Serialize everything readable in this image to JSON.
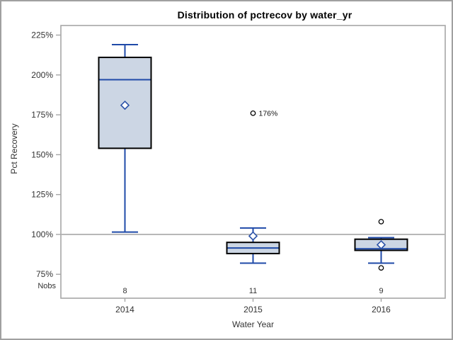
{
  "window": {
    "border_color": "#a0a0a0",
    "background": "#ffffff"
  },
  "chart_data": {
    "type": "boxplot",
    "title": "Distribution of pctrecov by water_yr",
    "xlabel": "Water Year",
    "ylabel": "Pct Recovery",
    "nobs_label": "Nobs",
    "ylim": [
      60,
      231
    ],
    "grid": "off",
    "y_ticks": [
      {
        "value": 75,
        "label": "75%"
      },
      {
        "value": 100,
        "label": "100%"
      },
      {
        "value": 125,
        "label": "125%"
      },
      {
        "value": 150,
        "label": "150%"
      },
      {
        "value": 175,
        "label": "175%"
      },
      {
        "value": 200,
        "label": "200%"
      },
      {
        "value": 225,
        "label": "225%"
      }
    ],
    "reference_line": 100,
    "categories": [
      {
        "label": "2014",
        "nobs": "8",
        "whisker_low": 101.5,
        "q1": 154,
        "median": 197,
        "q3": 211,
        "whisker_high": 219,
        "mean": 181,
        "outliers": []
      },
      {
        "label": "2015",
        "nobs": "11",
        "whisker_low": 82,
        "q1": 88,
        "median": 91.5,
        "q3": 95,
        "whisker_high": 104,
        "mean": 99,
        "outliers": [
          {
            "value": 176,
            "label": "176%"
          }
        ]
      },
      {
        "label": "2016",
        "nobs": "9",
        "whisker_low": 82,
        "q1": 90,
        "median": 91,
        "q3": 97,
        "whisker_high": 98,
        "mean": 93.5,
        "outliers": [
          {
            "value": 108,
            "label": ""
          },
          {
            "value": 79,
            "label": ""
          }
        ]
      }
    ],
    "colors": {
      "box_fill": "#ccd6e4",
      "box_border": "#000000",
      "whisker": "#1f4aa8",
      "median": "#1f4aa8",
      "mean_marker": "#2b52a8",
      "outlier": "#000000",
      "reference_line": "#b3b3b3",
      "frame": "#a6a6a6",
      "tick_text": "#333333"
    }
  }
}
